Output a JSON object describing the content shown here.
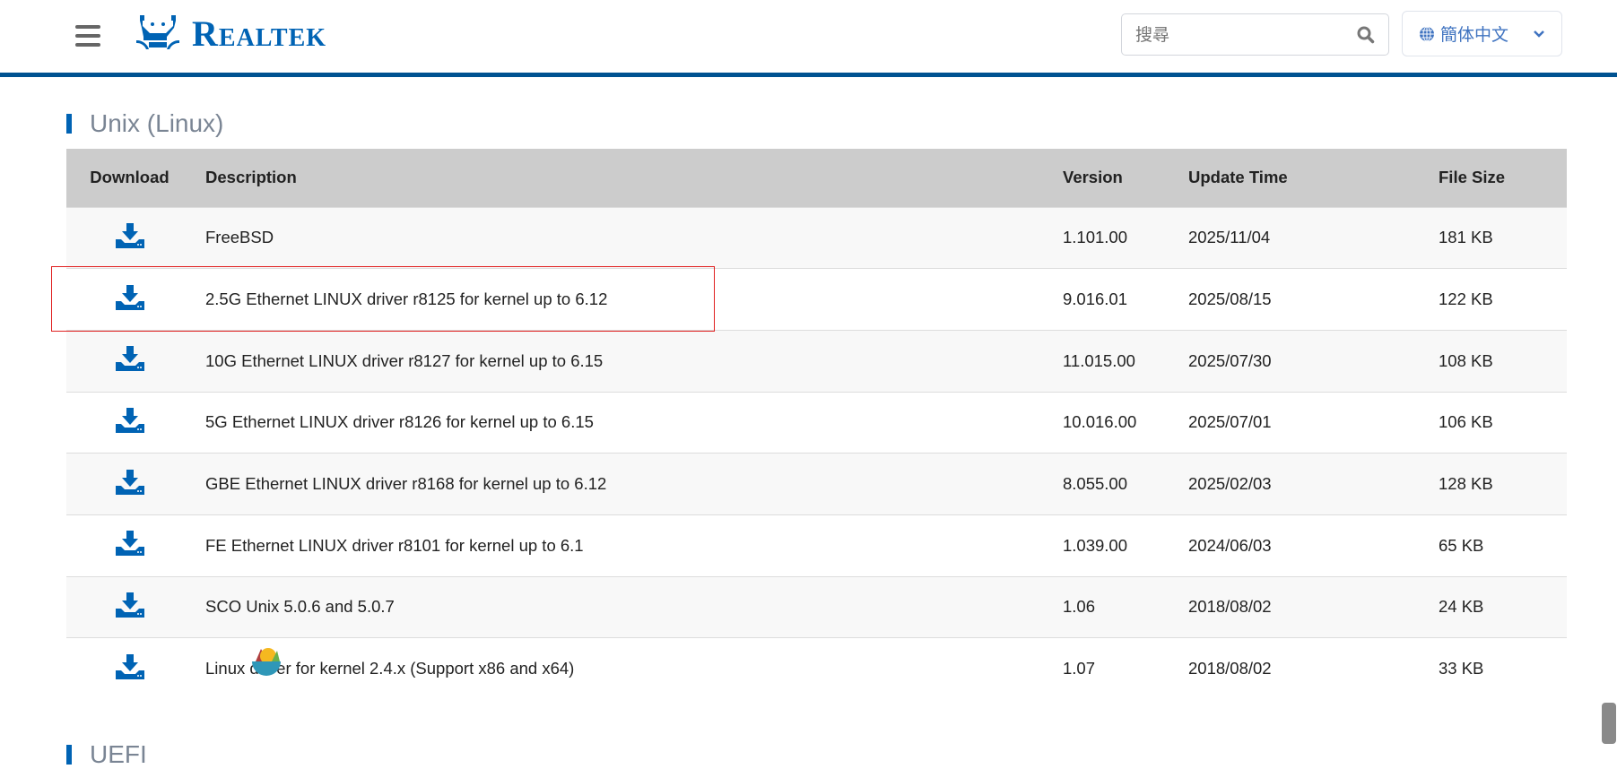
{
  "header": {
    "logo_text": "Realtek",
    "search_placeholder": "搜尋",
    "language": "簡体中文"
  },
  "section": {
    "title": "Unix (Linux)",
    "next_title": "UEFI"
  },
  "table": {
    "columns": [
      "Download",
      "Description",
      "Version",
      "Update Time",
      "File Size"
    ],
    "rows": [
      {
        "description": "FreeBSD",
        "version": "1.101.00",
        "date": "2025/11/04",
        "size": "181 KB"
      },
      {
        "description": "2.5G Ethernet LINUX driver r8125 for kernel up to 6.12",
        "version": "9.016.01",
        "date": "2025/08/15",
        "size": "122 KB"
      },
      {
        "description": "10G Ethernet LINUX driver r8127 for kernel up to 6.15",
        "version": "11.015.00",
        "date": "2025/07/30",
        "size": "108 KB"
      },
      {
        "description": "5G Ethernet LINUX driver r8126 for kernel up to 6.15",
        "version": "10.016.00",
        "date": "2025/07/01",
        "size": "106 KB"
      },
      {
        "description": "GBE Ethernet LINUX driver r8168 for kernel up to 6.12",
        "version": "8.055.00",
        "date": "2025/02/03",
        "size": "128 KB"
      },
      {
        "description": "FE Ethernet LINUX driver r8101 for kernel up to 6.1",
        "version": "1.039.00",
        "date": "2024/06/03",
        "size": "65 KB"
      },
      {
        "description": "SCO Unix 5.0.6 and 5.0.7",
        "version": "1.06",
        "date": "2018/08/02",
        "size": "24 KB"
      },
      {
        "description": "Linux driver for kernel 2.4.x (Support x86 and x64)",
        "version": "1.07",
        "date": "2018/08/02",
        "size": "33 KB"
      }
    ]
  },
  "colors": {
    "brand": "#0063b4",
    "topline": "#005291",
    "highlight": "#e02020"
  }
}
